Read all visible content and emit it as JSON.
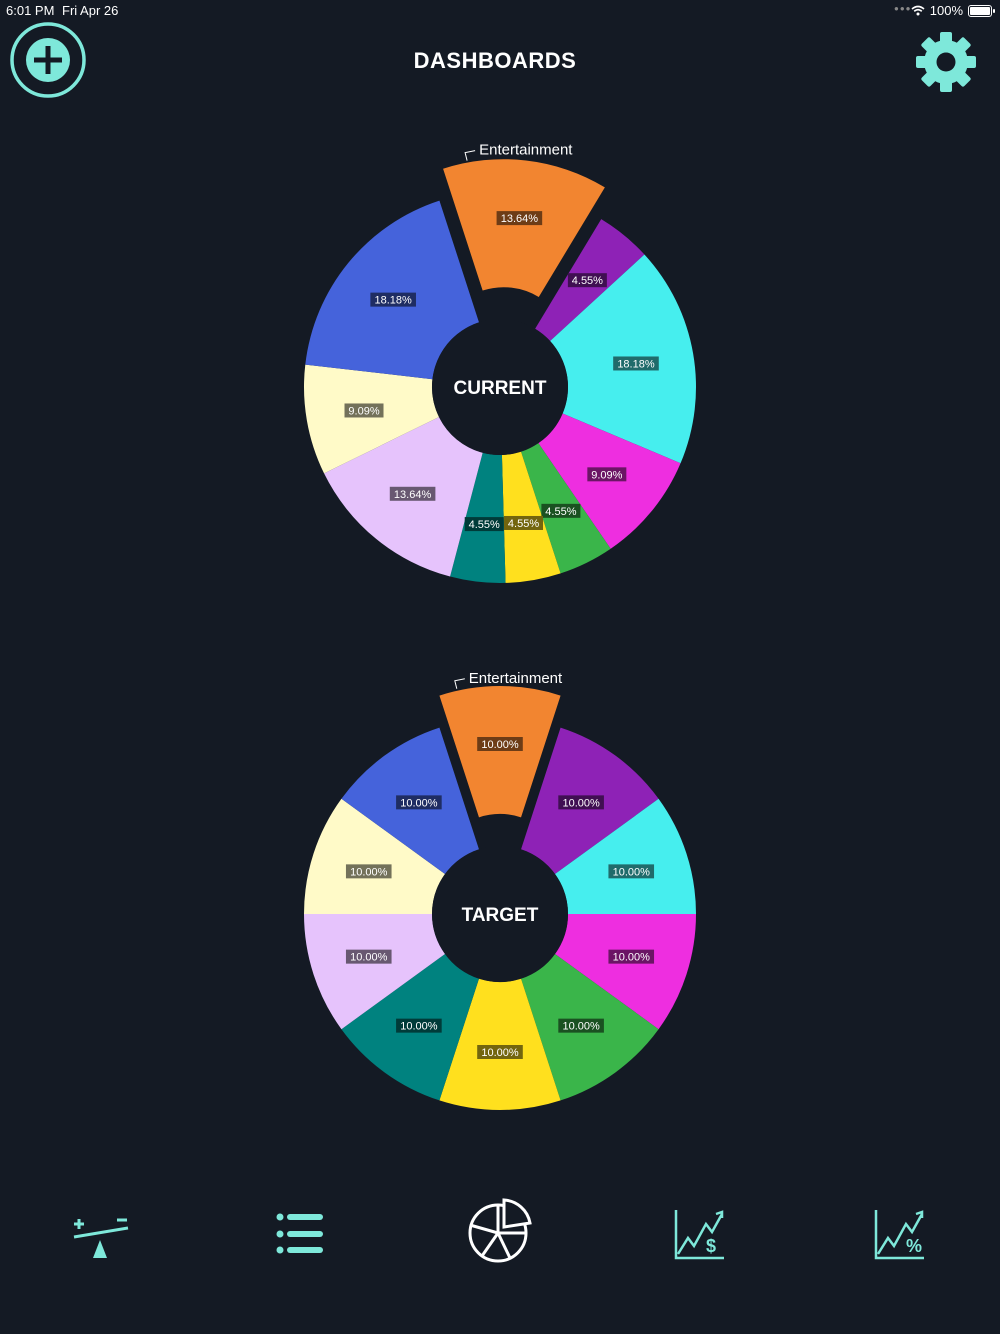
{
  "status_bar": {
    "time": "6:01 PM",
    "date": "Fri Apr 26",
    "battery": "100%",
    "icons": [
      "wifi-icon",
      "battery-icon"
    ]
  },
  "header": {
    "title": "DASHBOARDS",
    "left_icon": "add-circle-icon",
    "right_icon": "gear-icon",
    "accent_color": "#7ee8da"
  },
  "chart_data": [
    {
      "type": "pie",
      "title": "",
      "center_label": "CURRENT",
      "exploded_label": "Entertainment",
      "slices": [
        {
          "value": 13.64,
          "label": "13.64%",
          "color": "#f28530",
          "exploded": true
        },
        {
          "value": 4.55,
          "label": "4.55%",
          "color": "#8e22b6"
        },
        {
          "value": 18.18,
          "label": "18.18%",
          "color": "#46eeee"
        },
        {
          "value": 9.09,
          "label": "9.09%",
          "color": "#ee2ee0"
        },
        {
          "value": 4.55,
          "label": "4.55%",
          "color": "#3ab54a"
        },
        {
          "value": 4.55,
          "label": "4.55%",
          "color": "#ffe01e"
        },
        {
          "value": 4.55,
          "label": "4.55%",
          "color": "#00827f"
        },
        {
          "value": 13.64,
          "label": "13.64%",
          "color": "#e6c3fc"
        },
        {
          "value": 9.09,
          "label": "9.09%",
          "color": "#fffac8"
        },
        {
          "value": 18.18,
          "label": "18.18%",
          "color": "#4563db"
        }
      ]
    },
    {
      "type": "pie",
      "title": "",
      "center_label": "TARGET",
      "exploded_label": "Entertainment",
      "slices": [
        {
          "value": 10.0,
          "label": "10.00%",
          "color": "#f28530",
          "exploded": true
        },
        {
          "value": 10.0,
          "label": "10.00%",
          "color": "#8e22b6"
        },
        {
          "value": 10.0,
          "label": "10.00%",
          "color": "#46eeee"
        },
        {
          "value": 10.0,
          "label": "10.00%",
          "color": "#ee2ee0"
        },
        {
          "value": 10.0,
          "label": "10.00%",
          "color": "#3ab54a"
        },
        {
          "value": 10.0,
          "label": "10.00%",
          "color": "#ffe01e"
        },
        {
          "value": 10.0,
          "label": "10.00%",
          "color": "#00827f"
        },
        {
          "value": 10.0,
          "label": "10.00%",
          "color": "#e6c3fc"
        },
        {
          "value": 10.0,
          "label": "10.00%",
          "color": "#fffac8"
        },
        {
          "value": 10.0,
          "label": "10.00%",
          "color": "#4563db"
        }
      ]
    }
  ],
  "tab_bar": {
    "tabs": [
      {
        "icon": "balance-scale-icon",
        "selected": false
      },
      {
        "icon": "list-icon",
        "selected": false
      },
      {
        "icon": "pie-chart-icon",
        "selected": true
      },
      {
        "icon": "chart-dollar-icon",
        "selected": false
      },
      {
        "icon": "chart-percent-icon",
        "selected": false
      }
    ],
    "accent_color": "#7ee8da"
  }
}
